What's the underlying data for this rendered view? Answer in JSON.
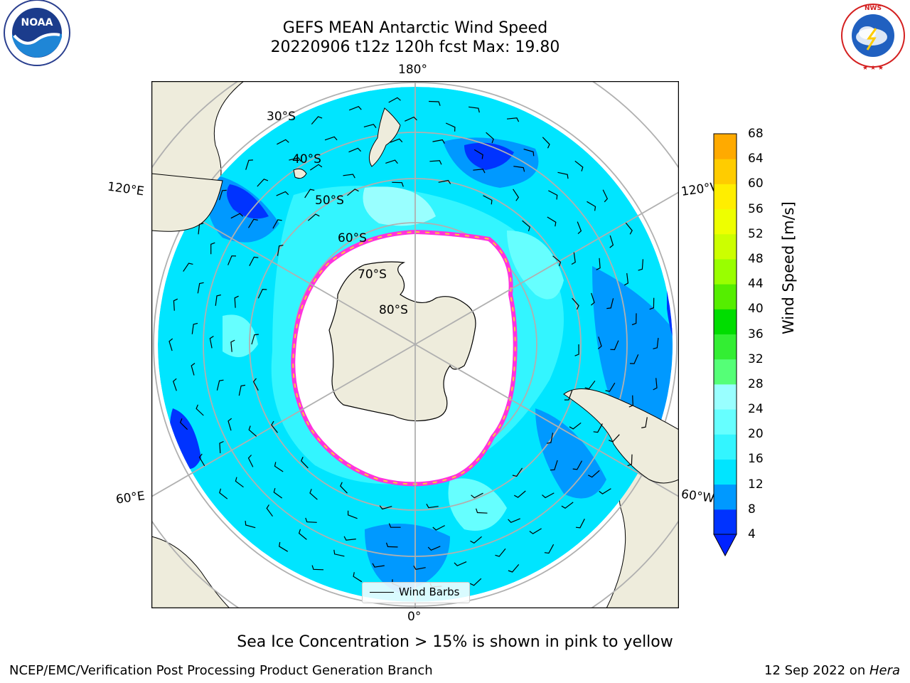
{
  "header": {
    "title_line1": "GEFS MEAN Antarctic Wind Speed",
    "title_line2": "20220906 t12z 120h fcst   Max: 19.80"
  },
  "logos": {
    "noaa_text": "NOAA",
    "noaa_ring_text": "NATIONAL OCEANIC AND ATMOSPHERIC ADMINISTRATION · U.S. DEPARTMENT OF COMMERCE",
    "nws_ring_text": "NATIONAL WEATHER SERVICE"
  },
  "map": {
    "longitude_labels": {
      "top": "180°",
      "bottom": "0°",
      "upper_left": "120°E",
      "lower_left": "60°E",
      "upper_right": "120°W",
      "lower_right": "60°W"
    },
    "latitude_labels": [
      "30°S",
      "40°S",
      "50°S",
      "60°S",
      "70°S",
      "80°S"
    ],
    "legend_label": "Wind Barbs",
    "colors": {
      "land": "#eeecdc",
      "ice_interior": "#ffffff",
      "grid": "#b0b0b0",
      "ice_edge_pink": "#ff33dd",
      "ice_edge_yellow": "#ffcc33"
    }
  },
  "colorbar": {
    "label": "Wind Speed [m/s]",
    "ticks": [
      "4",
      "8",
      "12",
      "16",
      "20",
      "24",
      "28",
      "32",
      "36",
      "40",
      "44",
      "48",
      "52",
      "56",
      "60",
      "64",
      "68"
    ],
    "colors": [
      "#0033ff",
      "#0099ff",
      "#00e5ff",
      "#33f5ff",
      "#66ffff",
      "#99ffff",
      "#55ff77",
      "#33ee33",
      "#00dd00",
      "#55ee00",
      "#99ff00",
      "#ccff00",
      "#eeff00",
      "#ffee00",
      "#ffcc00",
      "#ffaa00",
      "#ff8800",
      "#ff6600",
      "#ff3300",
      "#ff0000"
    ],
    "extend_color": "#0022ff"
  },
  "footer": {
    "sea_ice_note": "Sea Ice Concentration > 15% is shown in pink to yellow",
    "left": "NCEP/EMC/Verification Post Processing Product Generation Branch",
    "right_date": "12 Sep 2022 on ",
    "right_host": "Hera"
  }
}
